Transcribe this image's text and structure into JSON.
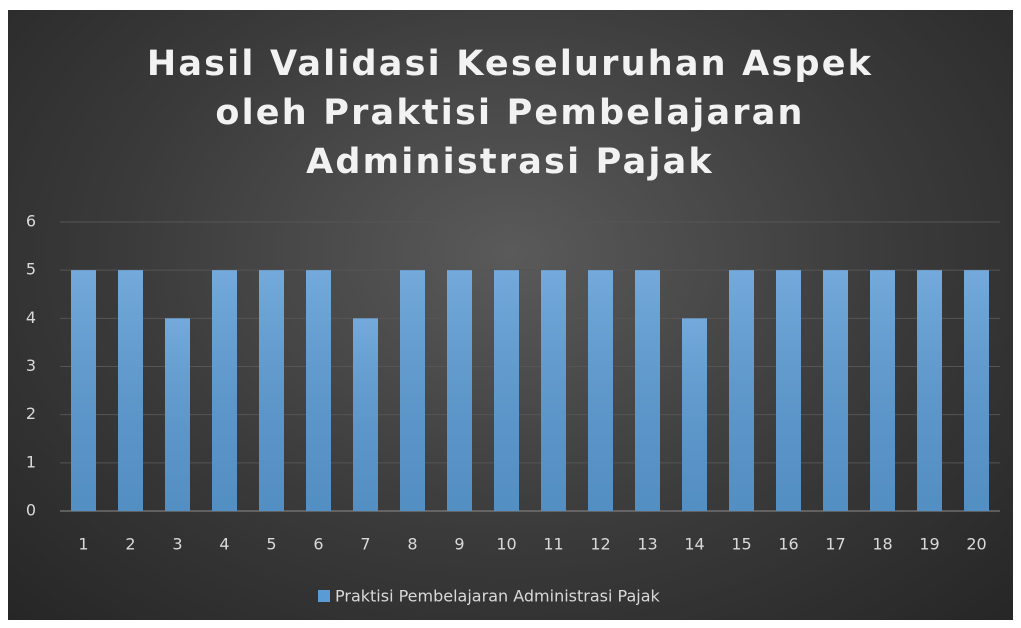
{
  "chart_data": {
    "type": "bar",
    "title": "Hasil Validasi Keseluruhan Aspek oleh Praktisi Pembelajaran Administrasi Pajak",
    "categories": [
      "1",
      "2",
      "3",
      "4",
      "5",
      "6",
      "7",
      "8",
      "9",
      "10",
      "11",
      "12",
      "13",
      "14",
      "15",
      "16",
      "17",
      "18",
      "19",
      "20"
    ],
    "series": [
      {
        "name": "Praktisi Pembelajaran Administrasi Pajak",
        "color": "#5b9bd5",
        "values": [
          5,
          5,
          4,
          5,
          5,
          5,
          4,
          5,
          5,
          5,
          5,
          5,
          5,
          4,
          5,
          5,
          5,
          5,
          5,
          5
        ]
      }
    ],
    "ylim": [
      0,
      6
    ],
    "yticks": [
      0,
      1,
      2,
      3,
      4,
      5,
      6
    ],
    "grid": true,
    "legend": "bottom"
  }
}
